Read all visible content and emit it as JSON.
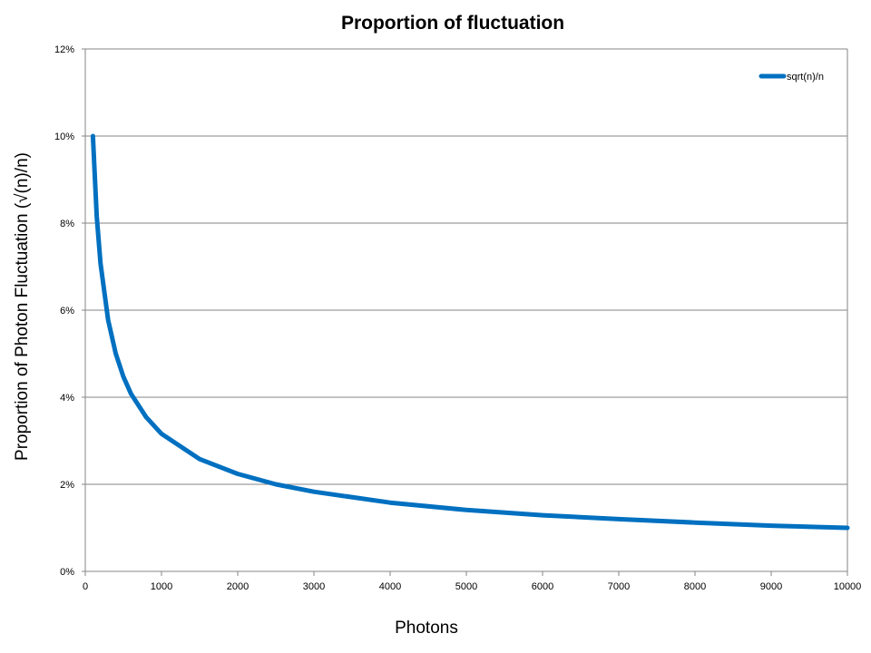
{
  "chart_data": {
    "type": "line",
    "title": "Proportion of fluctuation",
    "xlabel": "Photons",
    "ylabel": "Proportion of Photon Fluctuation (√(n)/n)",
    "xlim": [
      0,
      10000
    ],
    "ylim": [
      0,
      0.12
    ],
    "x_ticks": [
      0,
      1000,
      2000,
      3000,
      4000,
      5000,
      6000,
      7000,
      8000,
      9000,
      10000
    ],
    "y_ticks": [
      0,
      0.02,
      0.04,
      0.06,
      0.08,
      0.1,
      0.12
    ],
    "y_tick_labels": [
      "0%",
      "2%",
      "4%",
      "6%",
      "8%",
      "10%",
      "12%"
    ],
    "grid": "horizontal",
    "legend_position": "top-right",
    "colors": {
      "series": "#0070C0",
      "grid": "#868686",
      "axis": "#868686"
    },
    "series": [
      {
        "name": "sqrt(n)/n",
        "x": [
          100,
          150,
          200,
          300,
          400,
          500,
          600,
          800,
          1000,
          1500,
          2000,
          2500,
          3000,
          4000,
          5000,
          6000,
          7000,
          8000,
          9000,
          10000
        ],
        "values": [
          0.1,
          0.0816,
          0.0707,
          0.0577,
          0.05,
          0.0447,
          0.0408,
          0.0354,
          0.0316,
          0.0258,
          0.0224,
          0.02,
          0.0183,
          0.0158,
          0.0141,
          0.0129,
          0.012,
          0.0112,
          0.0105,
          0.01
        ]
      }
    ]
  }
}
